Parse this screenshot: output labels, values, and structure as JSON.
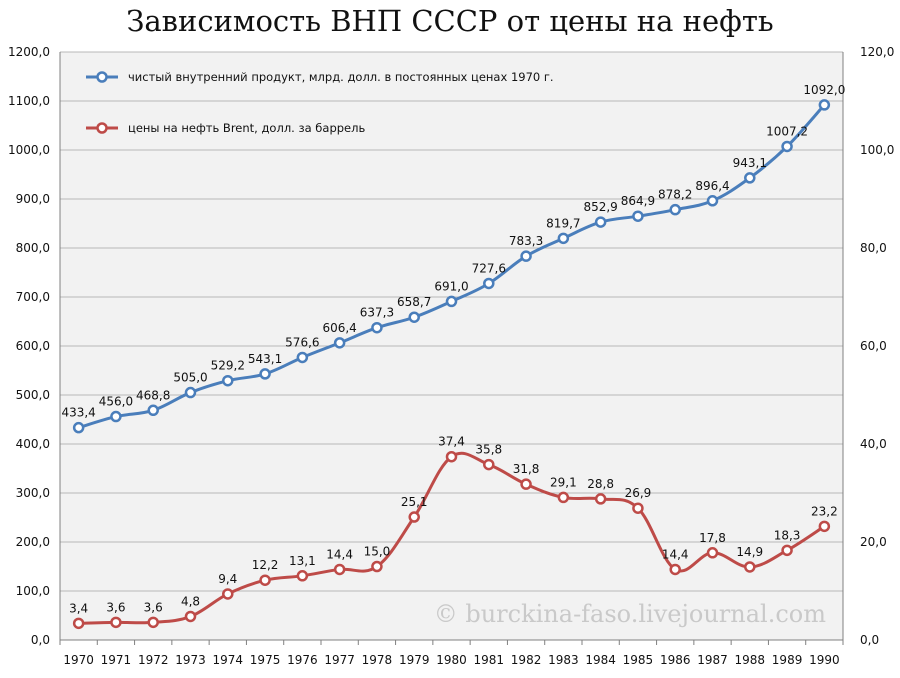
{
  "chart_data": {
    "type": "line",
    "title": "Зависимость ВНП СССР от цены на нефть",
    "categories": [
      "1970",
      "1971",
      "1972",
      "1973",
      "1974",
      "1975",
      "1976",
      "1977",
      "1978",
      "1979",
      "1980",
      "1981",
      "1982",
      "1983",
      "1984",
      "1985",
      "1986",
      "1987",
      "1988",
      "1989",
      "1990"
    ],
    "left_axis": {
      "min": 0,
      "max": 1200,
      "step": 100,
      "ticks": [
        "0,0",
        "100,0",
        "200,0",
        "300,0",
        "400,0",
        "500,0",
        "600,0",
        "700,0",
        "800,0",
        "900,0",
        "1000,0",
        "1100,0",
        "1200,0"
      ]
    },
    "right_axis": {
      "min": 0,
      "max": 120,
      "step": 20,
      "ticks": [
        "0,0",
        "20,0",
        "40,0",
        "60,0",
        "80,0",
        "100,0",
        "120,0"
      ]
    },
    "grid": true,
    "legend_position": "top-left",
    "series": [
      {
        "name": "чистый внутренний продукт, млрд. долл. в постоянных ценах 1970 г.",
        "axis": "left",
        "color": "#4a7ebb",
        "values": [
          433.4,
          456.0,
          468.8,
          505.0,
          529.2,
          543.1,
          576.6,
          606.4,
          637.3,
          658.7,
          691.0,
          727.6,
          783.3,
          819.7,
          852.9,
          864.9,
          878.2,
          896.4,
          943.1,
          1007.2,
          1092.0
        ],
        "labels": [
          "433,4",
          "456,0",
          "468,8",
          "505,0",
          "529,2",
          "543,1",
          "576,6",
          "606,4",
          "637,3",
          "658,7",
          "691,0",
          "727,6",
          "783,3",
          "819,7",
          "852,9",
          "864,9",
          "878,2",
          "896,4",
          "943,1",
          "1007,2",
          "1092,0"
        ]
      },
      {
        "name": "цены на нефть Brent, долл. за баррель",
        "axis": "right",
        "color": "#be4b48",
        "values": [
          3.4,
          3.6,
          3.6,
          4.8,
          9.4,
          12.2,
          13.1,
          14.4,
          15.0,
          25.1,
          37.4,
          35.8,
          31.8,
          29.1,
          28.8,
          26.9,
          14.4,
          17.8,
          14.9,
          18.3,
          23.2
        ],
        "labels": [
          "3,4",
          "3,6",
          "3,6",
          "4,8",
          "9,4",
          "12,2",
          "13,1",
          "14,4",
          "15,0",
          "25,1",
          "37,4",
          "35,8",
          "31,8",
          "29,1",
          "28,8",
          "26,9",
          "14,4",
          "17,8",
          "14,9",
          "18,3",
          "23,2"
        ]
      }
    ],
    "watermark": "© burckina-faso.livejournal.com"
  }
}
